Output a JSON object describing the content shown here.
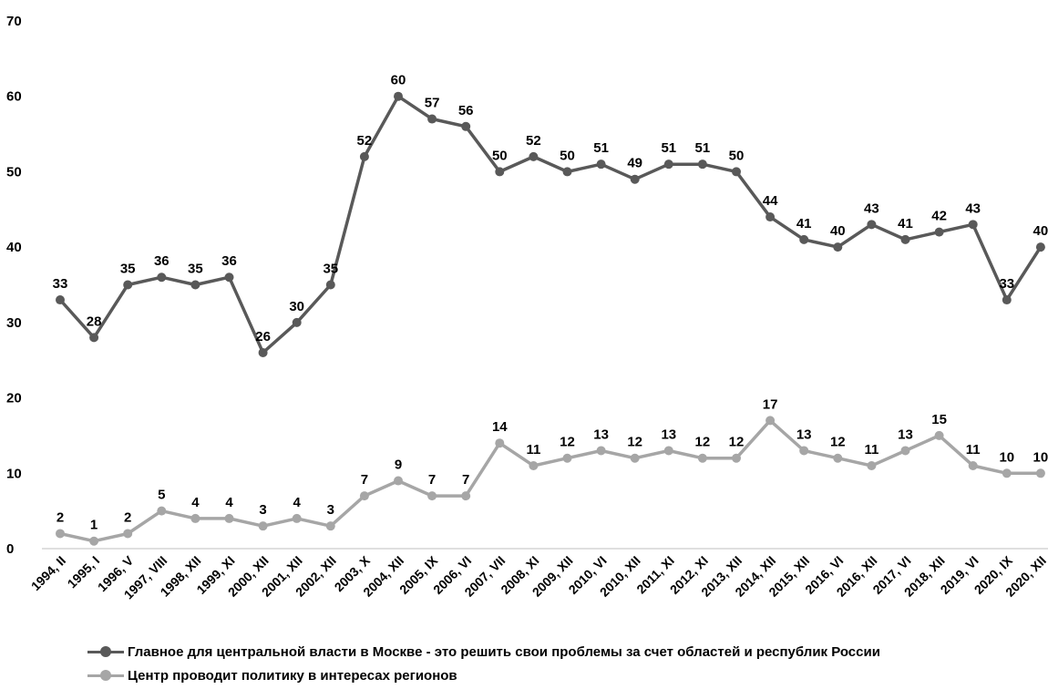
{
  "chart_data": {
    "type": "line",
    "categories": [
      "1994, II",
      "1995, I",
      "1996, V",
      "1997, VIII",
      "1998, XII",
      "1999, XI",
      "2000, XII",
      "2001, XII",
      "2002, XII",
      "2003, X",
      "2004, XII",
      "2005, IX",
      "2006, VI",
      "2007, VII",
      "2008, XI",
      "2009, XII",
      "2010, VI",
      "2010, XII",
      "2011, XI",
      "2012, XI",
      "2013, XII",
      "2014, XII",
      "2015, XII",
      "2016, VI",
      "2016, XII",
      "2017, VI",
      "2018, XII",
      "2019, VI",
      "2020, IX",
      "2020, XII"
    ],
    "series": [
      {
        "name": "Главное для центральной власти в Москве - это решить свои проблемы за счет областей и республик России",
        "color": "#595959",
        "values": [
          33,
          28,
          35,
          36,
          35,
          36,
          26,
          30,
          35,
          52,
          60,
          57,
          56,
          50,
          52,
          50,
          51,
          49,
          51,
          51,
          50,
          44,
          41,
          40,
          43,
          41,
          42,
          43,
          33,
          40
        ]
      },
      {
        "name": "Центр проводит политику в интересах регионов",
        "color": "#a6a6a6",
        "values": [
          2,
          1,
          2,
          5,
          4,
          4,
          3,
          4,
          3,
          7,
          9,
          7,
          7,
          14,
          11,
          12,
          13,
          12,
          13,
          12,
          12,
          17,
          13,
          12,
          11,
          13,
          15,
          11,
          10,
          10
        ]
      }
    ],
    "ylim": [
      0,
      70
    ],
    "yticks": [
      0,
      10,
      20,
      30,
      40,
      50,
      60,
      70
    ],
    "title": "",
    "xlabel": "",
    "ylabel": "",
    "grid": false,
    "legend_position": "bottom"
  }
}
